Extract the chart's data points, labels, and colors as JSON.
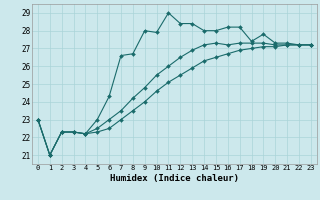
{
  "xlabel": "Humidex (Indice chaleur)",
  "xlim": [
    -0.5,
    23.5
  ],
  "ylim": [
    20.5,
    29.5
  ],
  "yticks": [
    21,
    22,
    23,
    24,
    25,
    26,
    27,
    28,
    29
  ],
  "xticks": [
    0,
    1,
    2,
    3,
    4,
    5,
    6,
    7,
    8,
    9,
    10,
    11,
    12,
    13,
    14,
    15,
    16,
    17,
    18,
    19,
    20,
    21,
    22,
    23
  ],
  "bg_color": "#cce8ec",
  "line_color": "#1a6b6b",
  "grid_color": "#aad4d8",
  "series": {
    "line1": [
      23.0,
      21.0,
      22.3,
      22.3,
      22.2,
      23.0,
      24.3,
      26.6,
      26.7,
      28.0,
      27.9,
      29.0,
      28.4,
      28.4,
      28.0,
      28.0,
      28.2,
      28.2,
      27.4,
      27.8,
      27.3,
      27.3,
      27.2,
      27.2
    ],
    "line2": [
      23.0,
      21.0,
      22.3,
      22.3,
      22.2,
      22.5,
      23.0,
      23.5,
      24.2,
      24.8,
      25.5,
      26.0,
      26.5,
      26.9,
      27.2,
      27.3,
      27.2,
      27.3,
      27.3,
      27.3,
      27.2,
      27.2,
      27.2,
      27.2
    ],
    "line3": [
      23.0,
      21.0,
      22.3,
      22.3,
      22.2,
      22.3,
      22.5,
      23.0,
      23.5,
      24.0,
      24.6,
      25.1,
      25.5,
      25.9,
      26.3,
      26.5,
      26.7,
      26.9,
      27.0,
      27.1,
      27.1,
      27.2,
      27.2,
      27.2
    ]
  }
}
